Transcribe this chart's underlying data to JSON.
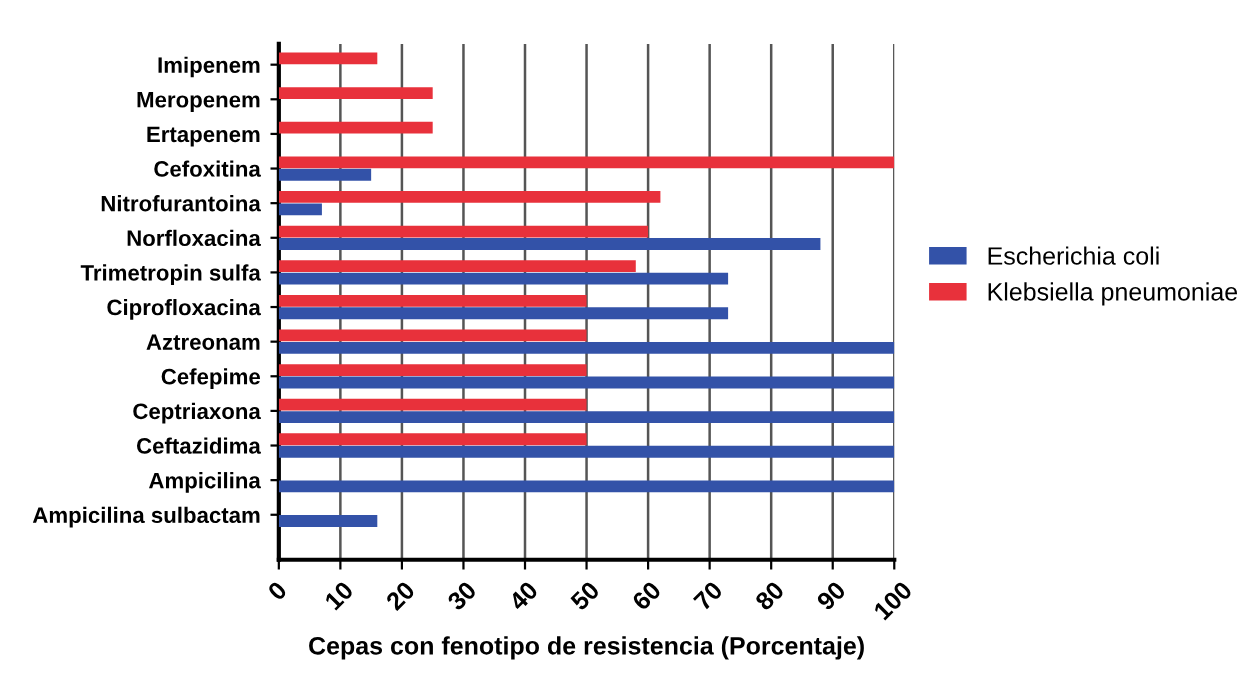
{
  "chart_data": {
    "type": "bar",
    "orientation": "horizontal",
    "xlabel": "Cepas con fenotipo de resistencia (Porcentaje)",
    "categories": [
      "Imipenem",
      "Meropenem",
      "Ertapenem",
      "Cefoxitina",
      "Nitrofurantoina",
      "Norfloxacina",
      "Trimetropin sulfa",
      "Ciprofloxacina",
      "Aztreonam",
      "Cefepime",
      "Ceptriaxona",
      "Ceftazidima",
      "Ampicilina",
      "Ampicilina sulbactam"
    ],
    "series": [
      {
        "name": "Escherichia coli",
        "color": "#3352a8",
        "values": [
          null,
          null,
          null,
          15,
          7,
          88,
          73,
          73,
          100,
          100,
          100,
          100,
          100,
          16
        ]
      },
      {
        "name": "Klebsiella pneumoniae",
        "color": "#e8313b",
        "values": [
          16,
          25,
          25,
          100,
          62,
          60,
          58,
          50,
          50,
          50,
          50,
          50,
          null,
          null
        ]
      }
    ],
    "xlim": [
      0,
      100
    ],
    "xticks": [
      0,
      10,
      20,
      30,
      40,
      50,
      60,
      70,
      80,
      90,
      100
    ],
    "grid": "x",
    "legend": "right"
  }
}
